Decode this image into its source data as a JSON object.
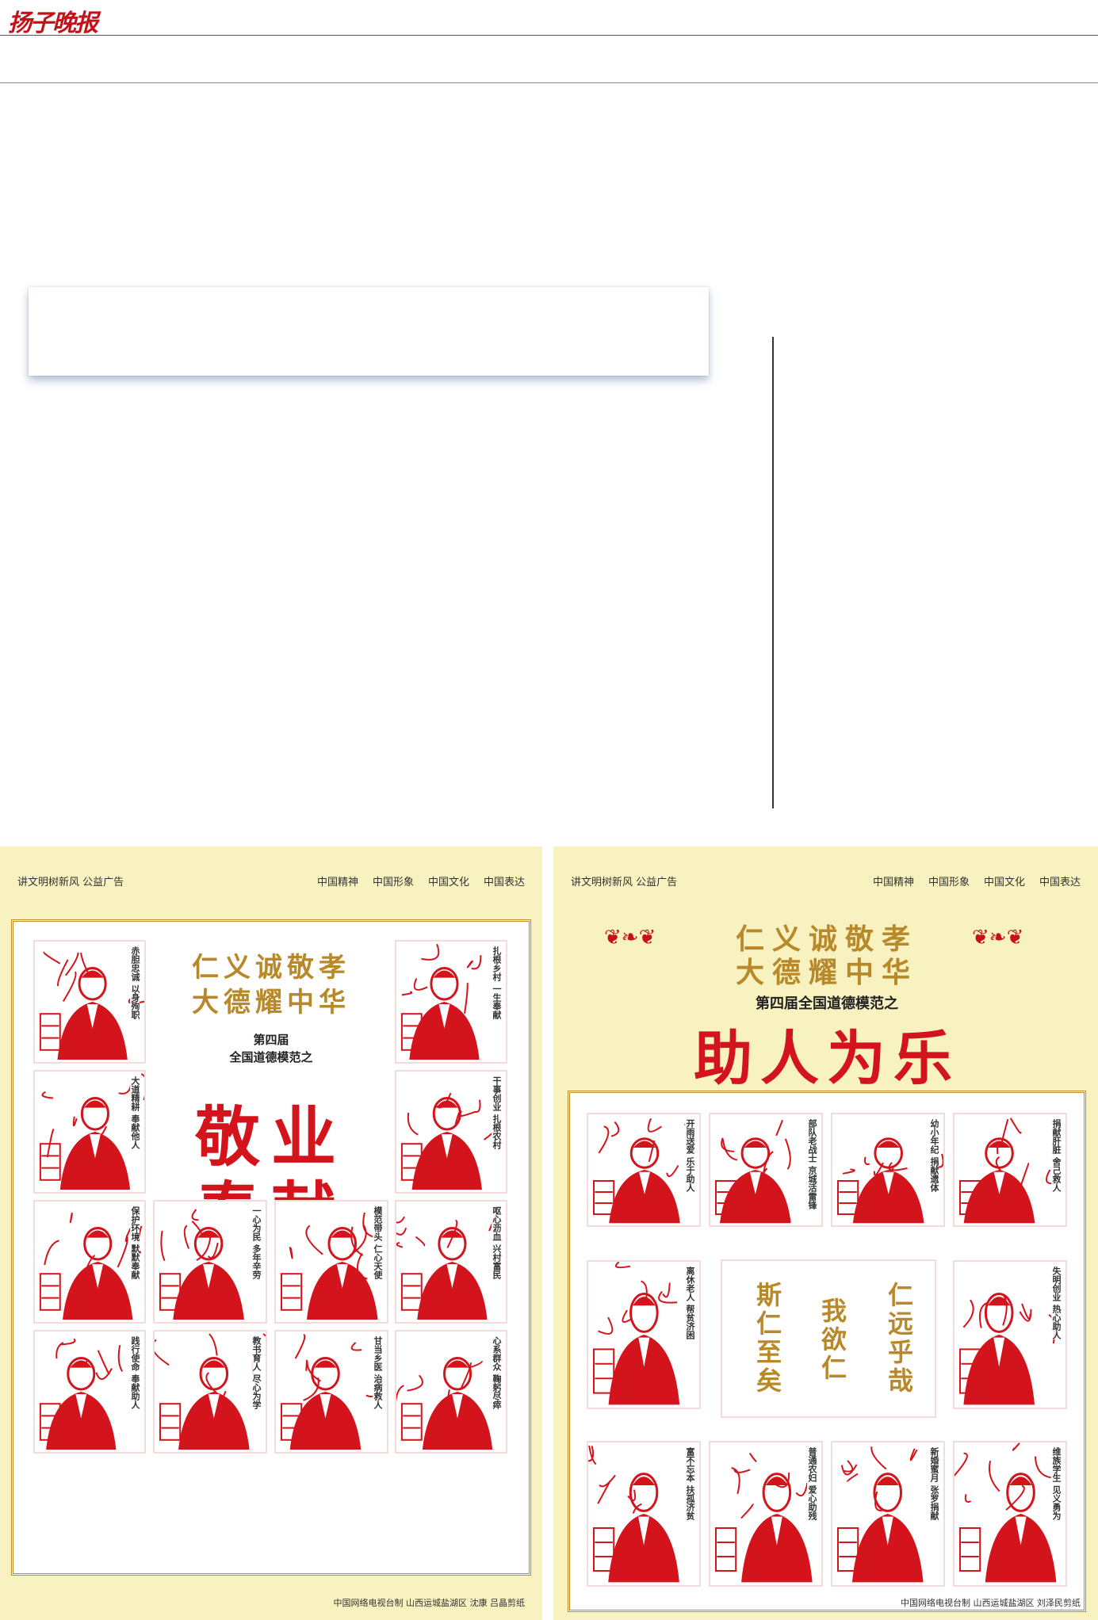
{
  "masthead": {
    "logo": "扬子晚报"
  },
  "left_poster": {
    "header_left": "讲文明树新风  公益广告",
    "header_tags": [
      "中国精神",
      "中国形象",
      "中国文化",
      "中国表达"
    ],
    "slogan_1": "仁义诚敬孝",
    "slogan_2": "大德耀中华",
    "edition_1": "第四届",
    "edition_2": "全国道德模范之",
    "theme_1": "敬业",
    "theme_2": "奉献",
    "credit": "中国网络电视台制    山西运城盐湖区  沈康  吕晶剪纸",
    "panels": [
      {
        "caption": "赤胆忠诚 以身殉职"
      },
      {
        "caption": "扎根乡村 一生奉献"
      },
      {
        "caption": "大道精耕 奉献他人"
      },
      {
        "caption": "干事创业 扎根农村"
      },
      {
        "caption": "保护环境 默默奉献"
      },
      {
        "caption": "一心为民 多年辛劳"
      },
      {
        "caption": "模范带头 仁心天使"
      },
      {
        "caption": "呕心沥血 兴村富民"
      },
      {
        "caption": "践行使命 奉献助人"
      },
      {
        "caption": "教书育人 尽心为学"
      },
      {
        "caption": "甘当乡医 治病救人"
      },
      {
        "caption": "心系群众 鞠躬尽瘁"
      }
    ]
  },
  "right_poster": {
    "header_left": "讲文明树新风  公益广告",
    "header_tags": [
      "中国精神",
      "中国形象",
      "中国文化",
      "中国表达"
    ],
    "slogan_1": "仁义诚敬孝",
    "slogan_2": "大德耀中华",
    "edition": "第四届全国道德模范之",
    "theme": "助人为乐",
    "center_col_1": "仁远乎哉",
    "center_col_2": "我欲仁",
    "center_col_3": "斯仁至矣",
    "credit": "中国网络电视台制    山西运城盐湖区  刘泽民剪纸",
    "panels": [
      {
        "caption": "开雨送爱 乐于助人"
      },
      {
        "caption": "部队老战士 京城活雷锋"
      },
      {
        "caption": "幼小年纪 捐献遗体"
      },
      {
        "caption": "捐献肝脏 舍己救人"
      },
      {
        "caption": "离休老人 帮贫济困"
      },
      {
        "caption": "失明创业 热心助人"
      },
      {
        "caption": "富不忘本 扶孤济贫"
      },
      {
        "caption": "普通农妇 爱心助残"
      },
      {
        "caption": "新婚蜜月 张罗捐献"
      },
      {
        "caption": "维族学生 见义勇为"
      }
    ]
  },
  "colors": {
    "brand_red": "#c4121a",
    "cut_red": "#d4141c",
    "gold": "#b8892a",
    "poster_bg": "#f8f1c0"
  }
}
